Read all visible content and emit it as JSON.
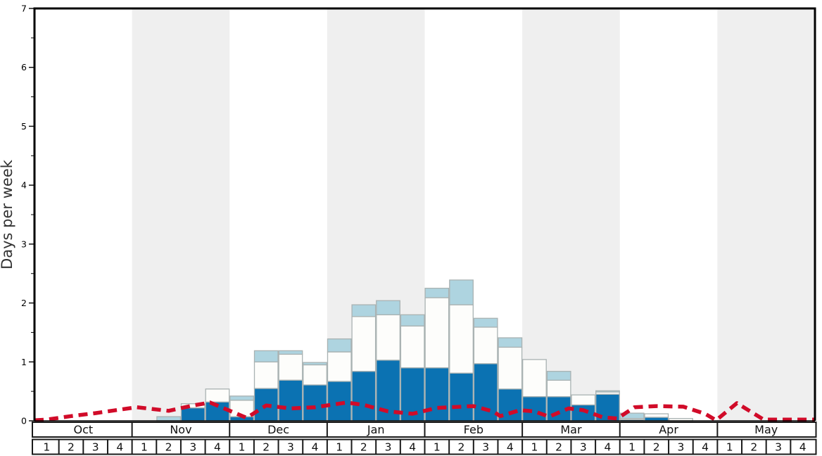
{
  "chart_data": {
    "type": "bar",
    "subtype": "stacked-weekly-bars-with-dashed-line",
    "title": "",
    "ylabel": "Days per week",
    "xlabel": "",
    "ylim": [
      0,
      7
    ],
    "ytick_labels": [
      "0",
      "1",
      "2",
      "3",
      "4",
      "5",
      "6",
      "7"
    ],
    "minor_tick_step": 0.5,
    "grid": false,
    "months": [
      "Oct",
      "Nov",
      "Dec",
      "Jan",
      "Feb",
      "Mar",
      "Apr",
      "May"
    ],
    "week_labels": [
      "1",
      "2",
      "3",
      "4"
    ],
    "shaded_months": [
      "Nov",
      "Jan",
      "Mar",
      "May"
    ],
    "series": [
      {
        "name": "dark-blue-segment",
        "color": "#0b72b2",
        "values": [
          0,
          0,
          0,
          0,
          0,
          0,
          0.22,
          0.32,
          0.07,
          0.55,
          0.69,
          0.61,
          0.67,
          0.84,
          1.03,
          0.9,
          0.9,
          0.81,
          0.97,
          0.54,
          0.41,
          0.41,
          0.27,
          0.45,
          0.02,
          0.06,
          0,
          0,
          0,
          0,
          0,
          0
        ]
      },
      {
        "name": "white-segment",
        "color": "#fdfdfb",
        "values": [
          0,
          0,
          0,
          0,
          0,
          0,
          0.07,
          0.22,
          0.28,
          0.45,
          0.44,
          0.34,
          0.5,
          0.93,
          0.77,
          0.71,
          1.19,
          1.16,
          0.62,
          0.71,
          0.63,
          0.28,
          0.17,
          0.04,
          0.02,
          0.06,
          0.04,
          0,
          0,
          0,
          0,
          0
        ]
      },
      {
        "name": "light-blue-segment",
        "color": "#aed4e0",
        "values": [
          0,
          0,
          0,
          0,
          0,
          0.07,
          0,
          0,
          0.07,
          0.19,
          0.06,
          0.04,
          0.22,
          0.2,
          0.24,
          0.19,
          0.16,
          0.42,
          0.15,
          0.16,
          0,
          0.15,
          0,
          0.02,
          0.09,
          0,
          0,
          0,
          0,
          0,
          0,
          0
        ]
      }
    ],
    "line_series": {
      "name": "red-dashed-line",
      "color": "#d10b29",
      "style": "dashed",
      "points_week_x_value": [
        [
          0.0,
          0.01
        ],
        [
          0.5,
          0.02
        ],
        [
          1.5,
          0.08
        ],
        [
          2.5,
          0.13
        ],
        [
          3.5,
          0.19
        ],
        [
          4.2,
          0.23
        ],
        [
          5.5,
          0.17
        ],
        [
          6.5,
          0.26
        ],
        [
          7.2,
          0.31
        ],
        [
          8.7,
          0.05
        ],
        [
          9.5,
          0.26
        ],
        [
          10.5,
          0.21
        ],
        [
          11.5,
          0.23
        ],
        [
          12.8,
          0.31
        ],
        [
          13.5,
          0.27
        ],
        [
          14.5,
          0.16
        ],
        [
          15.5,
          0.12
        ],
        [
          16.5,
          0.22
        ],
        [
          18.0,
          0.25
        ],
        [
          18.8,
          0.16
        ],
        [
          19.1,
          0.08
        ],
        [
          19.9,
          0.18
        ],
        [
          20.5,
          0.16
        ],
        [
          21.1,
          0.07
        ],
        [
          21.9,
          0.21
        ],
        [
          22.5,
          0.18
        ],
        [
          23.3,
          0.06
        ],
        [
          23.9,
          0.04
        ],
        [
          24.6,
          0.23
        ],
        [
          25.5,
          0.25
        ],
        [
          26.6,
          0.24
        ],
        [
          27.5,
          0.12
        ],
        [
          27.95,
          0.01
        ],
        [
          28.8,
          0.3
        ],
        [
          29.9,
          0.02
        ],
        [
          31.0,
          0.02
        ],
        [
          32.0,
          0.02
        ]
      ]
    },
    "colors": {
      "band": "#efefef",
      "bar_outline": "#a9b2b2",
      "table_border": "#1a1a1a",
      "frame": "#000000",
      "background": "#ffffff"
    }
  }
}
